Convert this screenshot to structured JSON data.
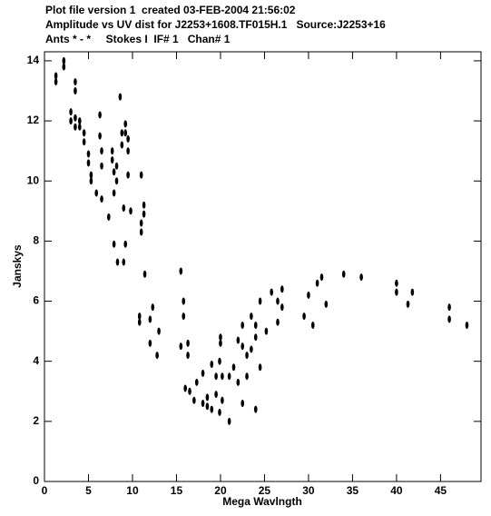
{
  "chart_data": {
    "type": "scatter",
    "title_lines": [
      "Plot file version 1  created 03-FEB-2004 21:56:02",
      "Amplitude vs UV dist for J2253+1608.TF015H.1   Source:J2253+16",
      "Ants * - *     Stokes I  IF# 1   Chan# 1"
    ],
    "x_label": "Mega Wavlngth",
    "y_label": "Janskys",
    "xlim": [
      0,
      49.6
    ],
    "ylim": [
      0,
      14.3
    ],
    "xticks": [
      0,
      5,
      10,
      15,
      20,
      25,
      30,
      35,
      40,
      45
    ],
    "yticks": [
      0,
      2,
      4,
      6,
      8,
      10,
      12,
      14
    ],
    "x": [
      1.3,
      1.3,
      2.2,
      2.2,
      3.0,
      3.0,
      3.5,
      3.5,
      3.5,
      3.5,
      4.0,
      4.0,
      4.5,
      4.5,
      5.0,
      5.0,
      5.3,
      5.3,
      5.9,
      6.3,
      6.3,
      6.5,
      6.5,
      6.5,
      7.3,
      7.7,
      7.7,
      7.9,
      7.9,
      7.9,
      8.2,
      8.2,
      8.3,
      8.6,
      8.8,
      8.8,
      9.0,
      9.0,
      9.2,
      9.2,
      9.2,
      9.5,
      9.5,
      9.5,
      9.8,
      10.8,
      10.8,
      11.0,
      11.0,
      11.0,
      11.3,
      11.3,
      11.4,
      12.0,
      12.0,
      12.3,
      12.8,
      13.0,
      15.5,
      15.5,
      15.8,
      15.8,
      16.0,
      16.3,
      16.3,
      16.5,
      17.0,
      17.3,
      18.0,
      18.0,
      18.5,
      18.5,
      19.0,
      19.0,
      19.5,
      19.5,
      19.9,
      19.9,
      20.0,
      20.0,
      20.2,
      20.2,
      21.0,
      21.0,
      21.5,
      22.0,
      22.0,
      22.5,
      22.5,
      22.5,
      23.0,
      23.0,
      23.5,
      23.5,
      24.0,
      24.0,
      24.0,
      24.5,
      24.5,
      25.2,
      25.8,
      26.5,
      26.5,
      27.0,
      27.0,
      29.5,
      30.0,
      30.5,
      31.0,
      31.5,
      32.0,
      34.0,
      36.0,
      40.0,
      40.0,
      41.3,
      41.8,
      46.0,
      46.0,
      48.0
    ],
    "series": [
      {
        "color": "#000000",
        "values": [
          13.3,
          13.5,
          13.8,
          14.0,
          12.0,
          12.3,
          13.0,
          13.3,
          11.8,
          12.1,
          11.8,
          12.0,
          11.3,
          11.6,
          10.6,
          10.9,
          10.0,
          10.2,
          9.6,
          11.5,
          12.2,
          10.5,
          11.0,
          9.4,
          8.8,
          10.7,
          11.0,
          9.6,
          10.3,
          7.9,
          10.0,
          10.5,
          7.3,
          12.8,
          11.2,
          11.6,
          9.1,
          7.3,
          11.6,
          11.9,
          7.9,
          11.0,
          11.4,
          10.2,
          9.0,
          5.3,
          5.5,
          8.3,
          8.6,
          10.2,
          8.9,
          9.2,
          6.9,
          4.6,
          5.4,
          5.8,
          4.2,
          5.0,
          4.5,
          7.0,
          5.5,
          6.0,
          3.1,
          4.2,
          4.6,
          3.0,
          2.7,
          3.3,
          2.6,
          3.6,
          2.5,
          2.8,
          2.4,
          3.9,
          2.9,
          3.5,
          2.3,
          4.0,
          4.6,
          4.8,
          3.5,
          2.7,
          2.0,
          3.5,
          3.8,
          3.3,
          4.7,
          2.6,
          4.5,
          5.2,
          3.5,
          4.2,
          5.5,
          4.4,
          2.4,
          4.8,
          5.2,
          3.8,
          6.0,
          5.0,
          6.3,
          5.3,
          6.0,
          6.4,
          5.8,
          5.5,
          6.2,
          5.2,
          6.6,
          6.8,
          5.9,
          6.9,
          6.8,
          6.3,
          6.6,
          5.9,
          6.3,
          5.4,
          5.8,
          5.2
        ]
      }
    ]
  }
}
